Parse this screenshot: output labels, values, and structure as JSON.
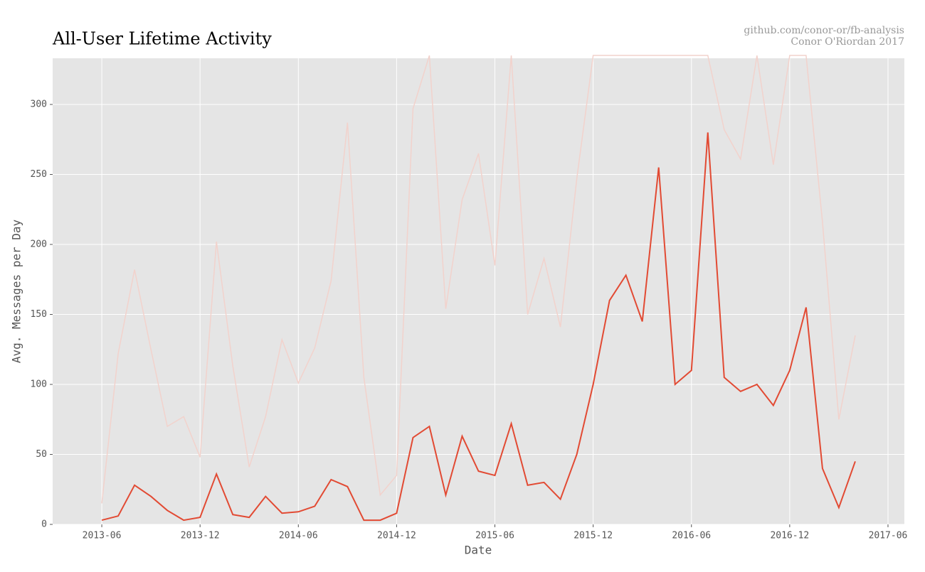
{
  "chart_data": {
    "type": "line",
    "title": "All-User Lifetime Activity",
    "subtitle": [
      "github.com/conor-or/fb-analysis",
      "Conor O'Riordan 2017"
    ],
    "xlabel": "Date",
    "ylabel": "Avg. Messages per Day",
    "x": [
      "2013-06",
      "2013-07",
      "2013-08",
      "2013-09",
      "2013-10",
      "2013-11",
      "2013-12",
      "2014-01",
      "2014-02",
      "2014-03",
      "2014-04",
      "2014-05",
      "2014-06",
      "2014-07",
      "2014-08",
      "2014-09",
      "2014-10",
      "2014-11",
      "2014-12",
      "2015-01",
      "2015-02",
      "2015-03",
      "2015-04",
      "2015-05",
      "2015-06",
      "2015-07",
      "2015-08",
      "2015-09",
      "2015-10",
      "2015-11",
      "2015-12",
      "2016-01",
      "2016-02",
      "2016-03",
      "2016-04",
      "2016-05",
      "2016-06",
      "2016-07",
      "2016-08",
      "2016-09",
      "2016-10",
      "2016-11",
      "2016-12",
      "2017-01",
      "2017-02",
      "2017-03",
      "2017-04"
    ],
    "series": [
      {
        "color": "#f2d2cc",
        "values": [
          15,
          122,
          182,
          125,
          70,
          77,
          48,
          202,
          113,
          41,
          77,
          132,
          101,
          126,
          174,
          287,
          105,
          21,
          35,
          297,
          335,
          154,
          232,
          265,
          185,
          335,
          150,
          190,
          141,
          247,
          335,
          335,
          335,
          335,
          335,
          335,
          335,
          335,
          282,
          261,
          335,
          257,
          335,
          335,
          216,
          75,
          135
        ]
      },
      {
        "color": "#e24a33",
        "values": [
          3,
          6,
          28,
          20,
          10,
          3,
          5,
          36,
          7,
          5,
          20,
          8,
          9,
          13,
          32,
          27,
          3,
          3,
          8,
          62,
          70,
          21,
          63,
          38,
          35,
          72,
          28,
          30,
          18,
          50,
          100,
          160,
          178,
          145,
          255,
          100,
          110,
          280,
          105,
          95,
          100,
          85,
          110,
          155,
          40,
          12,
          45
        ]
      }
    ],
    "xlim": [
      "2013-03",
      "2017-07"
    ],
    "xticks": [
      "2013-06",
      "2013-12",
      "2014-06",
      "2014-12",
      "2015-06",
      "2015-12",
      "2016-06",
      "2016-12",
      "2017-06"
    ],
    "ylim": [
      0,
      333
    ],
    "yticks": [
      0,
      50,
      100,
      150,
      200,
      250,
      300
    ],
    "grid": true
  }
}
